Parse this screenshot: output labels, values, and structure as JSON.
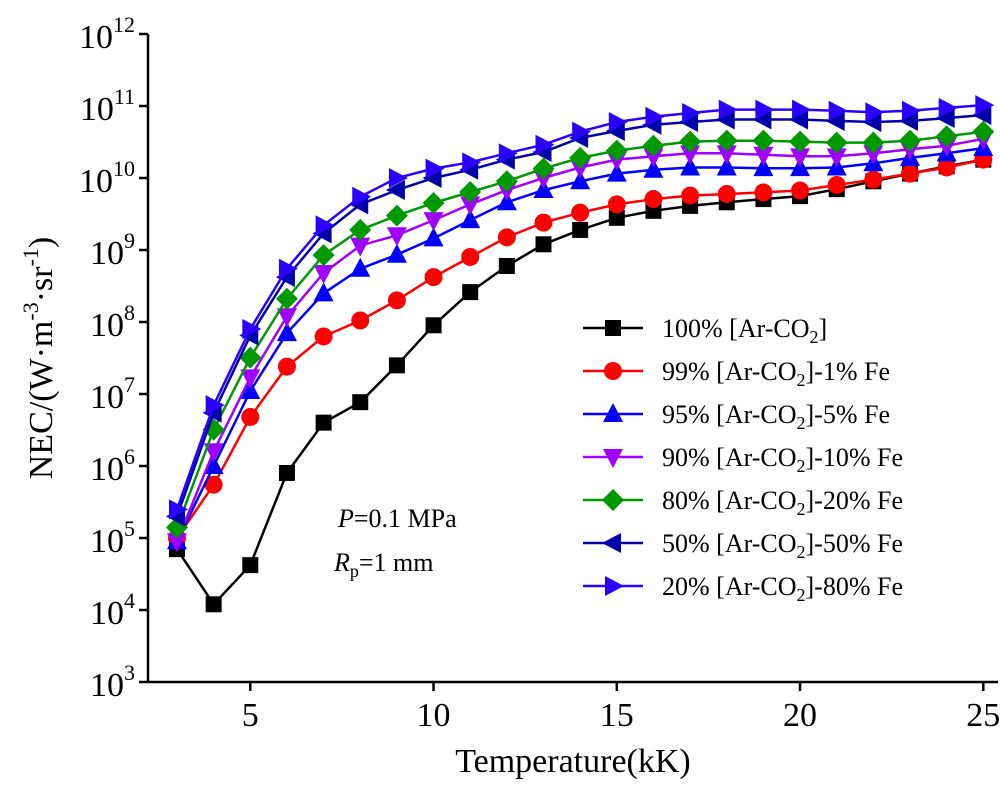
{
  "chart_data": {
    "type": "line",
    "title": "",
    "xlabel": "Temperature(kK)",
    "ylabel": "NEC/(W·m⁻³·sr⁻¹)",
    "ylabel_parts": {
      "base": "NEC/(W·m",
      "sup1": "-3",
      "mid": "·sr",
      "sup2": "-1",
      "end": ")"
    },
    "yscale": "log",
    "xlim": [
      2.6,
      25.5
    ],
    "ylim": [
      1000.0,
      1000000000000.0
    ],
    "x_ticks": [
      5,
      10,
      15,
      20,
      25
    ],
    "x_tick_labels": [
      "5",
      "10",
      "15",
      "20",
      "25"
    ],
    "y_ticks": [
      3,
      4,
      5,
      6,
      7,
      8,
      9,
      10,
      11,
      12
    ],
    "y_tick_labels": [
      "10^3",
      "10^4",
      "10^5",
      "10^6",
      "10^7",
      "10^8",
      "10^9",
      "10^10",
      "10^11",
      "10^12"
    ],
    "grid": false,
    "legend_position": "center-right",
    "annotations": [
      {
        "italic": "P",
        "text": "=0.1 MPa"
      },
      {
        "italic": "R",
        "sub": "p",
        "text": "=1 mm"
      }
    ],
    "x": [
      3,
      4,
      5,
      6,
      7,
      8,
      9,
      10,
      11,
      12,
      13,
      14,
      15,
      16,
      17,
      18,
      19,
      20,
      21,
      22,
      23,
      24,
      25
    ],
    "series": [
      {
        "name": "100% [Ar-CO2]",
        "label_prefix": "100% [Ar-CO",
        "label_sub": "2",
        "label_suffix": "]",
        "color": "#000000",
        "marker": "square",
        "values": [
          70000.0,
          12000.0,
          42000.0,
          800000.0,
          4000000.0,
          7700000.0,
          25000000.0,
          90000000.0,
          260000000.0,
          600000000.0,
          1200000000.0,
          1900000000.0,
          2800000000.0,
          3500000000.0,
          4100000000.0,
          4600000000.0,
          5100000000.0,
          5600000000.0,
          7000000000.0,
          9000000000.0,
          11500000000.0,
          14500000000.0,
          18000000000.0
        ]
      },
      {
        "name": "99% [Ar-CO2]-1% Fe",
        "label_prefix": "99% [Ar-CO",
        "label_sub": "2",
        "label_suffix": "]-1% Fe",
        "color": "#ff0000",
        "marker": "circle",
        "values": [
          100000.0,
          550000.0,
          4800000.0,
          24000000.0,
          63000000.0,
          105000000.0,
          200000000.0,
          420000000.0,
          800000000.0,
          1500000000.0,
          2400000000.0,
          3300000000.0,
          4300000000.0,
          5100000000.0,
          5700000000.0,
          6000000000.0,
          6300000000.0,
          6700000000.0,
          8000000000.0,
          9500000000.0,
          11500000000.0,
          14000000000.0,
          18000000000.0
        ]
      },
      {
        "name": "95% [Ar-CO2]-5% Fe",
        "label_prefix": "95% [Ar-CO",
        "label_sub": "2",
        "label_suffix": "]-5% Fe",
        "color": "#0000ff",
        "marker": "triangle-up",
        "values": [
          90000.0,
          1000000.0,
          11000000.0,
          70000000.0,
          250000000.0,
          550000000.0,
          860000000.0,
          1450000000.0,
          2600000000.0,
          4600000000.0,
          6800000000.0,
          9000000000.0,
          11500000000.0,
          13000000000.0,
          14000000000.0,
          14000000000.0,
          13700000000.0,
          13700000000.0,
          14000000000.0,
          16000000000.0,
          19000000000.0,
          22000000000.0,
          26000000000.0
        ]
      },
      {
        "name": "90% [Ar-CO2]-10% Fe",
        "label_prefix": "90% [Ar-CO",
        "label_sub": "2",
        "label_suffix": "]-10% Fe",
        "color": "#a000ff",
        "marker": "triangle-down",
        "values": [
          90000.0,
          1600000.0,
          17000000.0,
          120000000.0,
          480000000.0,
          1150000000.0,
          1600000000.0,
          2600000000.0,
          4300000000.0,
          6800000000.0,
          10000000000.0,
          14000000000.0,
          18000000000.0,
          20000000000.0,
          22000000000.0,
          22000000000.0,
          21000000000.0,
          20000000000.0,
          20000000000.0,
          22000000000.0,
          25000000000.0,
          28000000000.0,
          35000000000.0
        ]
      },
      {
        "name": "80% [Ar-CO2]-20% Fe",
        "label_prefix": "80% [Ar-CO",
        "label_sub": "2",
        "label_suffix": "]-20% Fe",
        "color": "#009900",
        "marker": "diamond",
        "values": [
          140000.0,
          3200000.0,
          32000000.0,
          210000000.0,
          850000000.0,
          1900000000.0,
          3000000000.0,
          4500000000.0,
          6400000000.0,
          9000000000.0,
          13500000000.0,
          19000000000.0,
          24000000000.0,
          28000000000.0,
          32000000000.0,
          33000000000.0,
          33000000000.0,
          32000000000.0,
          31000000000.0,
          31000000000.0,
          33000000000.0,
          38000000000.0,
          44000000000.0
        ]
      },
      {
        "name": "50% [Ar-CO2]-50% Fe",
        "label_prefix": "50% [Ar-CO",
        "label_sub": "2",
        "label_suffix": "]-50% Fe",
        "color": "#0000aa",
        "marker": "triangle-left",
        "values": [
          200000.0,
          5500000.0,
          65000000.0,
          420000000.0,
          1700000000.0,
          4300000000.0,
          6800000000.0,
          10000000000.0,
          13000000000.0,
          18000000000.0,
          23000000000.0,
          36000000000.0,
          45000000000.0,
          55000000000.0,
          60000000000.0,
          65000000000.0,
          65000000000.0,
          65000000000.0,
          62000000000.0,
          60000000000.0,
          62000000000.0,
          68000000000.0,
          75000000000.0
        ]
      },
      {
        "name": "20% [Ar-CO2]-80% Fe",
        "label_prefix": "20% [Ar-CO",
        "label_sub": "2",
        "label_suffix": "]-80% Fe",
        "color": "#2a00ff",
        "marker": "triangle-right",
        "values": [
          250000.0,
          7000000.0,
          80000000.0,
          550000000.0,
          2200000000.0,
          5500000000.0,
          10000000000.0,
          13500000000.0,
          16500000000.0,
          22000000000.0,
          29000000000.0,
          44000000000.0,
          60000000000.0,
          71000000000.0,
          80000000000.0,
          89000000000.0,
          89000000000.0,
          89000000000.0,
          86000000000.0,
          82000000000.0,
          86000000000.0,
          94000000000.0,
          103000000000.0
        ]
      }
    ]
  }
}
